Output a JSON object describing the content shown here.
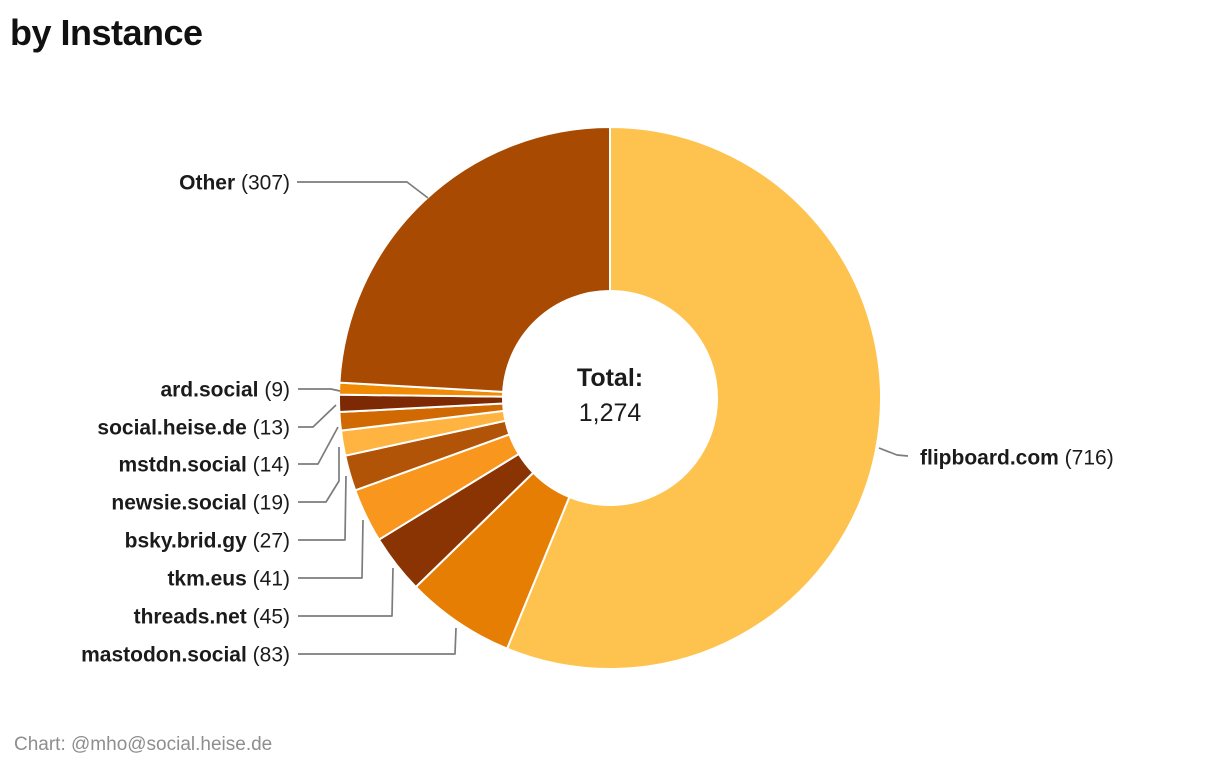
{
  "title": "by Instance",
  "credit": "Chart: @mho@social.heise.de",
  "center": {
    "label": "Total:",
    "value": "1,274"
  },
  "chart_data": {
    "type": "pie",
    "subtype": "donut",
    "title": "by Instance",
    "total_label": "Total:",
    "total_value": 1274,
    "total_display": "1,274",
    "start_angle_deg": 0,
    "direction": "clockwise",
    "label_format": "{name} ({value})",
    "leader_line_color": "#7c7c7c",
    "separator_color": "#ffffff",
    "text_color": "#1b1b1b",
    "slices": [
      {
        "label": "flipboard.com",
        "value": 716,
        "color": "#FEC34F"
      },
      {
        "label": "mastodon.social",
        "value": 83,
        "color": "#E67E04"
      },
      {
        "label": "threads.net",
        "value": 45,
        "color": "#8A3403"
      },
      {
        "label": "tkm.eus",
        "value": 41,
        "color": "#F8961D"
      },
      {
        "label": "bsky.brid.gy",
        "value": 27,
        "color": "#B25407"
      },
      {
        "label": "newsie.social",
        "value": 19,
        "color": "#FFB340"
      },
      {
        "label": "mstdn.social",
        "value": 14,
        "color": "#D06902"
      },
      {
        "label": "social.heise.de",
        "value": 13,
        "color": "#7D2A04"
      },
      {
        "label": "ard.social",
        "value": 9,
        "color": "#F18A05"
      },
      {
        "label": "Other",
        "value": 307,
        "color": "#A84A02"
      }
    ]
  }
}
